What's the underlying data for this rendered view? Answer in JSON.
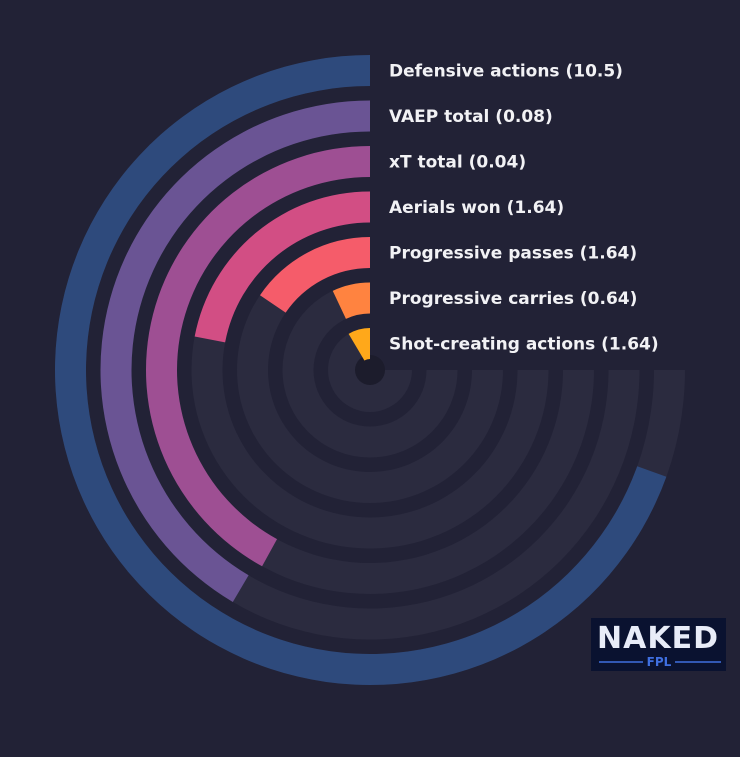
{
  "chart_data": {
    "type": "radial-bar",
    "bars": [
      {
        "label": "Defensive actions (10.5)",
        "metric": "Defensive actions",
        "value": 10.5,
        "fraction": 0.695,
        "color": "#2e4a7c"
      },
      {
        "label": "VAEP total (0.08)",
        "metric": "VAEP total",
        "value": 0.08,
        "fraction": 0.415,
        "color": "#6a5494"
      },
      {
        "label": "xT total (0.04)",
        "metric": "xT total",
        "value": 0.04,
        "fraction": 0.42,
        "color": "#9e4f93"
      },
      {
        "label": "Aerials won (1.64)",
        "metric": "Aerials won",
        "value": 1.64,
        "fraction": 0.22,
        "color": "#d24e84"
      },
      {
        "label": "Progressive passes (1.64)",
        "metric": "Progressive passes",
        "value": 1.64,
        "fraction": 0.155,
        "color": "#f55c6a"
      },
      {
        "label": "Progressive carries (0.64)",
        "metric": "Progressive carries",
        "value": 0.64,
        "fraction": 0.07,
        "color": "#ff8340"
      },
      {
        "label": "Shot-creating actions (1.64)",
        "metric": "Shot-creating actions",
        "value": 1.64,
        "fraction": 0.085,
        "color": "#ffa81a"
      }
    ],
    "track_color": "#2b2b3f",
    "background_color": "#222236",
    "grid": false,
    "legend": "none"
  },
  "logo": {
    "text": "NAKED",
    "sub": "FPL",
    "bg_color": "#0a1230",
    "accent_color": "#3f6fe0"
  }
}
